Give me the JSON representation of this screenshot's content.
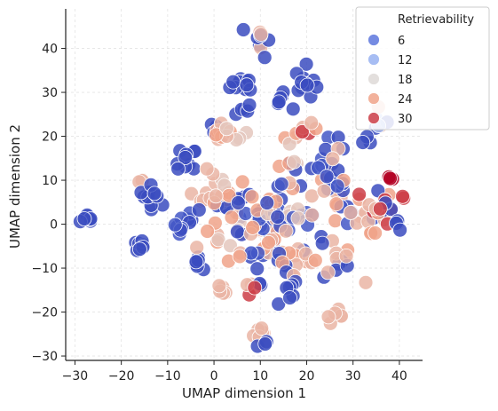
{
  "chart_data": {
    "type": "scatter",
    "xlabel": "UMAP dimension 1",
    "ylabel": "UMAP dimension 2",
    "xlim": [
      -32,
      45
    ],
    "ylim": [
      -31,
      49
    ],
    "x_ticks": [
      -30,
      -20,
      -10,
      0,
      10,
      20,
      30,
      40
    ],
    "y_ticks": [
      -30,
      -20,
      -10,
      0,
      10,
      20,
      30,
      40
    ],
    "x_tick_labels": [
      "−30",
      "−20",
      "−10",
      "0",
      "10",
      "20",
      "30",
      "40"
    ],
    "y_tick_labels": [
      "−30",
      "−20",
      "−10",
      "0",
      "10",
      "20",
      "30",
      "40"
    ],
    "grid": true,
    "legend": {
      "title": "Retrievability",
      "placement": "top-right",
      "entries": [
        {
          "label": "6",
          "value": 6,
          "color": "#5a78d8"
        },
        {
          "label": "12",
          "value": 12,
          "color": "#a8c6f7"
        },
        {
          "label": "18",
          "value": 18,
          "color": "#dcdcdc"
        },
        {
          "label": "24",
          "value": 24,
          "color": "#f4a88a"
        },
        {
          "label": "30",
          "value": 30,
          "color": "#d04a4a"
        }
      ]
    },
    "colormap": "coolwarm",
    "color_range": [
      2,
      33
    ],
    "clusters": [
      {
        "x": -27,
        "y": 1,
        "spread": [
          1.2,
          1
        ],
        "n": 7,
        "values": [
          2
        ]
      },
      {
        "x": -16,
        "y": -4.5,
        "spread": [
          1.0,
          1.4
        ],
        "n": 7,
        "values": [
          2
        ]
      },
      {
        "x": -16,
        "y": 9.5,
        "spread": [
          0.6,
          0.6
        ],
        "n": 3,
        "values": [
          22
        ]
      },
      {
        "x": -13,
        "y": 6.5,
        "spread": [
          2.2,
          1.6
        ],
        "n": 10,
        "values": [
          2
        ]
      },
      {
        "x": -6,
        "y": 0,
        "spread": [
          1.6,
          2.2
        ],
        "n": 10,
        "values": [
          2,
          3
        ]
      },
      {
        "x": -6,
        "y": 14,
        "spread": [
          1.5,
          2.4
        ],
        "n": 10,
        "values": [
          2
        ]
      },
      {
        "x": -3,
        "y": -8.5,
        "spread": [
          1.4,
          1.2
        ],
        "n": 6,
        "values": [
          2
        ]
      },
      {
        "x": -3,
        "y": 6,
        "spread": [
          1.2,
          1
        ],
        "n": 4,
        "values": [
          22
        ]
      },
      {
        "x": 0,
        "y": 22,
        "spread": [
          1,
          1
        ],
        "n": 3,
        "values": [
          2
        ]
      },
      {
        "x": 1,
        "y": -15.5,
        "spread": [
          1.4,
          1.2
        ],
        "n": 6,
        "values": [
          22
        ]
      },
      {
        "x": 3,
        "y": 20.5,
        "spread": [
          3,
          1.3
        ],
        "n": 12,
        "values": [
          22,
          24,
          20
        ]
      },
      {
        "x": 2,
        "y": 2,
        "spread": [
          4,
          6.5
        ],
        "n": 30,
        "values": [
          22,
          24,
          2,
          20
        ]
      },
      {
        "x": 9,
        "y": 0,
        "spread": [
          5,
          8
        ],
        "n": 45,
        "values": [
          2,
          3,
          22,
          24
        ]
      },
      {
        "x": 7,
        "y": 32,
        "spread": [
          2.2,
          1.4
        ],
        "n": 10,
        "values": [
          2
        ]
      },
      {
        "x": 6,
        "y": 26,
        "spread": [
          1.5,
          1
        ],
        "n": 5,
        "values": [
          2
        ]
      },
      {
        "x": 10,
        "y": 42,
        "spread": [
          1.4,
          2.6
        ],
        "n": 10,
        "values": [
          2,
          2,
          22
        ]
      },
      {
        "x": 10,
        "y": -24.5,
        "spread": [
          1.4,
          1.2
        ],
        "n": 6,
        "values": [
          22
        ]
      },
      {
        "x": 10,
        "y": -26.5,
        "spread": [
          0.8,
          0.8
        ],
        "n": 3,
        "values": [
          2
        ]
      },
      {
        "x": 9,
        "y": -14,
        "spread": [
          1.8,
          1.2
        ],
        "n": 6,
        "values": [
          2,
          22,
          30
        ]
      },
      {
        "x": 14,
        "y": 28,
        "spread": [
          1.5,
          1.2
        ],
        "n": 6,
        "values": [
          2
        ]
      },
      {
        "x": 20,
        "y": 32,
        "spread": [
          1.6,
          2.6
        ],
        "n": 12,
        "values": [
          2
        ]
      },
      {
        "x": 17,
        "y": 8,
        "spread": [
          5,
          9
        ],
        "n": 45,
        "values": [
          2,
          3,
          22,
          24,
          20
        ]
      },
      {
        "x": 20,
        "y": 21,
        "spread": [
          1.5,
          1.2
        ],
        "n": 6,
        "values": [
          30,
          24,
          22
        ]
      },
      {
        "x": 17,
        "y": -8,
        "spread": [
          4,
          4
        ],
        "n": 18,
        "values": [
          2,
          22,
          24
        ]
      },
      {
        "x": 17,
        "y": -14,
        "spread": [
          2.2,
          1.4
        ],
        "n": 6,
        "values": [
          2
        ]
      },
      {
        "x": 26,
        "y": -21,
        "spread": [
          1.2,
          1
        ],
        "n": 6,
        "values": [
          22
        ]
      },
      {
        "x": 26,
        "y": 4,
        "spread": [
          4,
          9
        ],
        "n": 35,
        "values": [
          2,
          3,
          22,
          24
        ]
      },
      {
        "x": 27,
        "y": -9,
        "spread": [
          2.2,
          2.2
        ],
        "n": 8,
        "values": [
          2,
          22
        ]
      },
      {
        "x": 35,
        "y": 3,
        "spread": [
          3.5,
          6
        ],
        "n": 25,
        "values": [
          22,
          24,
          2,
          30
        ]
      },
      {
        "x": 38,
        "y": 10.5,
        "spread": [
          0.6,
          0.6
        ],
        "n": 3,
        "values": [
          33
        ]
      },
      {
        "x": 36,
        "y": 23,
        "spread": [
          1.6,
          1.5
        ],
        "n": 6,
        "values": [
          2,
          22,
          12
        ]
      },
      {
        "x": 33,
        "y": 19,
        "spread": [
          1,
          1
        ],
        "n": 3,
        "values": [
          2
        ]
      },
      {
        "x": 40,
        "y": 0,
        "spread": [
          1.2,
          1.2
        ],
        "n": 4,
        "values": [
          2
        ]
      },
      {
        "x": 41,
        "y": 6,
        "spread": [
          0.6,
          0.6
        ],
        "n": 2,
        "values": [
          30
        ]
      }
    ]
  }
}
